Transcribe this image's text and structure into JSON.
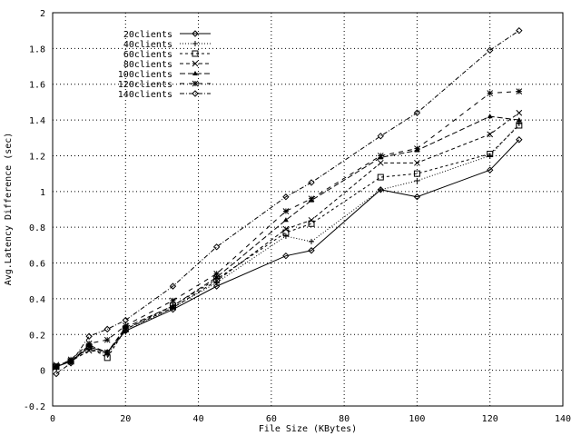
{
  "chart_data": {
    "type": "line",
    "title": "",
    "xlabel": "File Size (KBytes)",
    "ylabel": "Avg.Latency Difference (sec)",
    "xlim": [
      0,
      140
    ],
    "ylim": [
      -0.2,
      2
    ],
    "xticks": [
      0,
      20,
      40,
      60,
      80,
      100,
      120,
      140
    ],
    "yticks": [
      -0.2,
      0,
      0.2,
      0.4,
      0.6,
      0.8,
      1,
      1.2,
      1.4,
      1.6,
      1.8,
      2
    ],
    "grid": true,
    "legend_position": "upper-left",
    "x": [
      1,
      5,
      10,
      15,
      20,
      33,
      45,
      64,
      71,
      90,
      100,
      120,
      128
    ],
    "series": [
      {
        "name": "20clients",
        "dash": "",
        "marker": "diamond",
        "values": [
          0.02,
          0.05,
          0.13,
          0.1,
          0.22,
          0.34,
          0.47,
          0.64,
          0.67,
          1.01,
          0.97,
          1.12,
          1.29
        ]
      },
      {
        "name": "40clients",
        "dash": "1,2",
        "marker": "plus",
        "values": [
          0.02,
          0.05,
          0.12,
          0.09,
          0.22,
          0.35,
          0.49,
          0.75,
          0.72,
          1.01,
          1.06,
          1.2,
          1.38
        ]
      },
      {
        "name": "60clients",
        "dash": "3,3",
        "marker": "square",
        "values": [
          0.02,
          0.05,
          0.13,
          0.07,
          0.23,
          0.36,
          0.51,
          0.77,
          0.82,
          1.08,
          1.1,
          1.21,
          1.37
        ]
      },
      {
        "name": "80clients",
        "dash": "4,3",
        "marker": "cross",
        "values": [
          0.03,
          0.05,
          0.11,
          0.1,
          0.23,
          0.35,
          0.5,
          0.79,
          0.84,
          1.16,
          1.16,
          1.32,
          1.44
        ]
      },
      {
        "name": "100clients",
        "dash": "6,3",
        "marker": "triangle",
        "values": [
          0.02,
          0.05,
          0.14,
          0.1,
          0.24,
          0.36,
          0.52,
          0.84,
          0.95,
          1.19,
          1.23,
          1.42,
          1.4
        ]
      },
      {
        "name": "120clients",
        "dash": "5,5",
        "marker": "star",
        "values": [
          0.02,
          0.06,
          0.15,
          0.17,
          0.25,
          0.39,
          0.54,
          0.89,
          0.96,
          1.2,
          1.24,
          1.55,
          1.56
        ]
      },
      {
        "name": "140clients",
        "dash": "5,2,1,2",
        "marker": "diamond",
        "values": [
          -0.02,
          0.04,
          0.19,
          0.23,
          0.28,
          0.47,
          0.69,
          0.97,
          1.05,
          1.31,
          1.44,
          1.79,
          1.9
        ]
      }
    ]
  }
}
